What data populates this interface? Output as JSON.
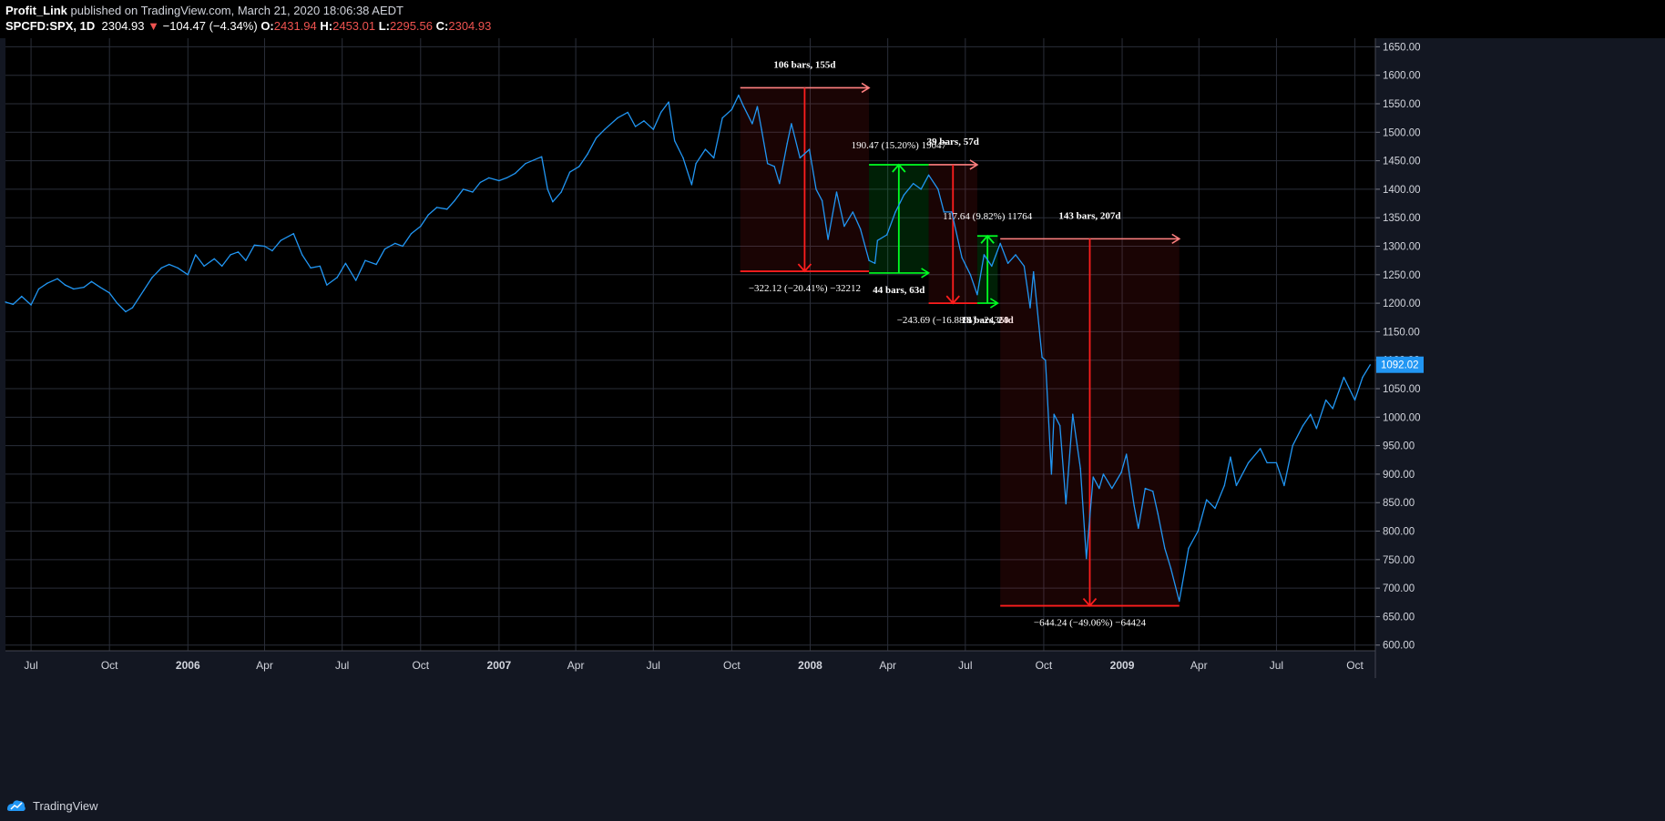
{
  "header": {
    "author": "Profit_Link",
    "published": "published on TradingView.com, March 21, 2020 18:06:38 AEDT",
    "symbol": "SPCFD:SPX, 1D",
    "last": "2304.93",
    "change": "−104.47 (−4.34%)",
    "o_label": "O:",
    "o_val": "2431.94",
    "h_label": "H:",
    "h_val": "2453.01",
    "l_label": "L:",
    "l_val": "2295.56",
    "c_label": "C:",
    "c_val": "2304.93",
    "down_arrow": "▼"
  },
  "footer": {
    "brand": "TradingView",
    "icon": "tradingview-logo-icon"
  },
  "colors": {
    "background": "#000000",
    "grid": "#2a2e39",
    "line": "#2196f3",
    "red": "#ff1e1e",
    "green": "#00ff22",
    "price_badge": "#2196f3"
  },
  "chart_data": {
    "type": "line",
    "title": "",
    "xlabel": "",
    "ylabel": "",
    "y_ticks": [
      600,
      650,
      700,
      750,
      800,
      850,
      900,
      950,
      1000,
      1050,
      1100,
      1150,
      1200,
      1250,
      1300,
      1350,
      1400,
      1450,
      1500,
      1550,
      1600,
      1650
    ],
    "ylim": [
      590,
      1665
    ],
    "x_ticks": [
      {
        "label": "Jul",
        "date": "2005-07-01",
        "bold": false
      },
      {
        "label": "Oct",
        "date": "2005-10-01",
        "bold": false
      },
      {
        "label": "2006",
        "date": "2006-01-01",
        "bold": true
      },
      {
        "label": "Apr",
        "date": "2006-04-01",
        "bold": false
      },
      {
        "label": "Jul",
        "date": "2006-07-01",
        "bold": false
      },
      {
        "label": "Oct",
        "date": "2006-10-01",
        "bold": false
      },
      {
        "label": "2007",
        "date": "2007-01-01",
        "bold": true
      },
      {
        "label": "Apr",
        "date": "2007-04-01",
        "bold": false
      },
      {
        "label": "Jul",
        "date": "2007-07-01",
        "bold": false
      },
      {
        "label": "Oct",
        "date": "2007-10-01",
        "bold": false
      },
      {
        "label": "2008",
        "date": "2008-01-01",
        "bold": true
      },
      {
        "label": "Apr",
        "date": "2008-04-01",
        "bold": false
      },
      {
        "label": "Jul",
        "date": "2008-07-01",
        "bold": false
      },
      {
        "label": "Oct",
        "date": "2008-10-01",
        "bold": false
      },
      {
        "label": "2009",
        "date": "2009-01-01",
        "bold": true
      },
      {
        "label": "Apr",
        "date": "2009-04-01",
        "bold": false
      },
      {
        "label": "Jul",
        "date": "2009-07-01",
        "bold": false
      },
      {
        "label": "Oct",
        "date": "2009-10-01",
        "bold": false
      }
    ],
    "xlim": [
      "2005-06-01",
      "2009-10-25"
    ],
    "series": [
      {
        "values": [
          [
            "2005-06-01",
            1202
          ],
          [
            "2005-06-10",
            1198
          ],
          [
            "2005-06-20",
            1212
          ],
          [
            "2005-07-01",
            1197
          ],
          [
            "2005-07-10",
            1225
          ],
          [
            "2005-07-20",
            1235
          ],
          [
            "2005-08-01",
            1243
          ],
          [
            "2005-08-10",
            1232
          ],
          [
            "2005-08-20",
            1225
          ],
          [
            "2005-09-01",
            1228
          ],
          [
            "2005-09-10",
            1238
          ],
          [
            "2005-09-20",
            1228
          ],
          [
            "2005-10-01",
            1218
          ],
          [
            "2005-10-10",
            1200
          ],
          [
            "2005-10-20",
            1185
          ],
          [
            "2005-10-28",
            1192
          ],
          [
            "2005-11-10",
            1222
          ],
          [
            "2005-11-20",
            1245
          ],
          [
            "2005-12-01",
            1262
          ],
          [
            "2005-12-10",
            1268
          ],
          [
            "2005-12-20",
            1262
          ],
          [
            "2006-01-01",
            1250
          ],
          [
            "2006-01-10",
            1285
          ],
          [
            "2006-01-20",
            1265
          ],
          [
            "2006-02-01",
            1278
          ],
          [
            "2006-02-10",
            1265
          ],
          [
            "2006-02-20",
            1285
          ],
          [
            "2006-03-01",
            1290
          ],
          [
            "2006-03-10",
            1275
          ],
          [
            "2006-03-20",
            1302
          ],
          [
            "2006-04-01",
            1300
          ],
          [
            "2006-04-10",
            1292
          ],
          [
            "2006-04-20",
            1310
          ],
          [
            "2006-05-05",
            1322
          ],
          [
            "2006-05-15",
            1285
          ],
          [
            "2006-05-25",
            1262
          ],
          [
            "2006-06-05",
            1265
          ],
          [
            "2006-06-13",
            1232
          ],
          [
            "2006-06-25",
            1245
          ],
          [
            "2006-07-05",
            1270
          ],
          [
            "2006-07-17",
            1240
          ],
          [
            "2006-07-28",
            1275
          ],
          [
            "2006-08-10",
            1268
          ],
          [
            "2006-08-20",
            1295
          ],
          [
            "2006-09-01",
            1305
          ],
          [
            "2006-09-10",
            1300
          ],
          [
            "2006-09-20",
            1322
          ],
          [
            "2006-10-01",
            1335
          ],
          [
            "2006-10-10",
            1355
          ],
          [
            "2006-10-20",
            1368
          ],
          [
            "2006-11-01",
            1365
          ],
          [
            "2006-11-10",
            1380
          ],
          [
            "2006-11-20",
            1400
          ],
          [
            "2006-12-01",
            1395
          ],
          [
            "2006-12-10",
            1412
          ],
          [
            "2006-12-20",
            1420
          ],
          [
            "2007-01-01",
            1415
          ],
          [
            "2007-01-10",
            1420
          ],
          [
            "2007-01-20",
            1428
          ],
          [
            "2007-02-01",
            1445
          ],
          [
            "2007-02-20",
            1457
          ],
          [
            "2007-02-27",
            1400
          ],
          [
            "2007-03-05",
            1378
          ],
          [
            "2007-03-15",
            1395
          ],
          [
            "2007-03-25",
            1430
          ],
          [
            "2007-04-05",
            1440
          ],
          [
            "2007-04-15",
            1462
          ],
          [
            "2007-04-25",
            1490
          ],
          [
            "2007-05-05",
            1505
          ],
          [
            "2007-05-20",
            1525
          ],
          [
            "2007-06-01",
            1535
          ],
          [
            "2007-06-10",
            1510
          ],
          [
            "2007-06-20",
            1520
          ],
          [
            "2007-07-01",
            1505
          ],
          [
            "2007-07-10",
            1535
          ],
          [
            "2007-07-19",
            1553
          ],
          [
            "2007-07-26",
            1485
          ],
          [
            "2007-08-05",
            1455
          ],
          [
            "2007-08-15",
            1408
          ],
          [
            "2007-08-20",
            1445
          ],
          [
            "2007-08-31",
            1470
          ],
          [
            "2007-09-10",
            1455
          ],
          [
            "2007-09-20",
            1525
          ],
          [
            "2007-10-01",
            1540
          ],
          [
            "2007-10-09",
            1565
          ],
          [
            "2007-10-15",
            1545
          ],
          [
            "2007-10-25",
            1515
          ],
          [
            "2007-10-31",
            1545
          ],
          [
            "2007-11-05",
            1505
          ],
          [
            "2007-11-12",
            1445
          ],
          [
            "2007-11-20",
            1440
          ],
          [
            "2007-11-26",
            1410
          ],
          [
            "2007-12-05",
            1480
          ],
          [
            "2007-12-10",
            1515
          ],
          [
            "2007-12-20",
            1455
          ],
          [
            "2007-12-31",
            1470
          ],
          [
            "2008-01-08",
            1400
          ],
          [
            "2008-01-15",
            1380
          ],
          [
            "2008-01-22",
            1312
          ],
          [
            "2008-02-01",
            1395
          ],
          [
            "2008-02-10",
            1335
          ],
          [
            "2008-02-20",
            1360
          ],
          [
            "2008-02-29",
            1330
          ],
          [
            "2008-03-10",
            1275
          ],
          [
            "2008-03-17",
            1270
          ],
          [
            "2008-03-20",
            1310
          ],
          [
            "2008-03-31",
            1320
          ],
          [
            "2008-04-10",
            1360
          ],
          [
            "2008-04-20",
            1390
          ],
          [
            "2008-05-01",
            1410
          ],
          [
            "2008-05-10",
            1400
          ],
          [
            "2008-05-19",
            1425
          ],
          [
            "2008-05-30",
            1400
          ],
          [
            "2008-06-06",
            1360
          ],
          [
            "2008-06-15",
            1360
          ],
          [
            "2008-06-27",
            1280
          ],
          [
            "2008-07-07",
            1250
          ],
          [
            "2008-07-15",
            1215
          ],
          [
            "2008-07-23",
            1285
          ],
          [
            "2008-08-01",
            1265
          ],
          [
            "2008-08-11",
            1305
          ],
          [
            "2008-08-20",
            1270
          ],
          [
            "2008-08-29",
            1285
          ],
          [
            "2008-09-08",
            1265
          ],
          [
            "2008-09-15",
            1192
          ],
          [
            "2008-09-19",
            1255
          ],
          [
            "2008-09-29",
            1105
          ],
          [
            "2008-10-03",
            1100
          ],
          [
            "2008-10-10",
            900
          ],
          [
            "2008-10-13",
            1005
          ],
          [
            "2008-10-20",
            985
          ],
          [
            "2008-10-27",
            848
          ],
          [
            "2008-11-04",
            1005
          ],
          [
            "2008-11-13",
            910
          ],
          [
            "2008-11-20",
            752
          ],
          [
            "2008-11-28",
            895
          ],
          [
            "2008-12-05",
            875
          ],
          [
            "2008-12-10",
            900
          ],
          [
            "2008-12-20",
            875
          ],
          [
            "2008-12-31",
            903
          ],
          [
            "2009-01-06",
            935
          ],
          [
            "2009-01-15",
            845
          ],
          [
            "2009-01-20",
            805
          ],
          [
            "2009-01-28",
            875
          ],
          [
            "2009-02-06",
            870
          ],
          [
            "2009-02-12",
            830
          ],
          [
            "2009-02-20",
            770
          ],
          [
            "2009-02-27",
            735
          ],
          [
            "2009-03-09",
            677
          ],
          [
            "2009-03-20",
            770
          ],
          [
            "2009-03-31",
            800
          ],
          [
            "2009-04-10",
            855
          ],
          [
            "2009-04-20",
            840
          ],
          [
            "2009-05-01",
            880
          ],
          [
            "2009-05-08",
            930
          ],
          [
            "2009-05-15",
            880
          ],
          [
            "2009-05-29",
            920
          ],
          [
            "2009-06-12",
            945
          ],
          [
            "2009-06-20",
            920
          ],
          [
            "2009-07-01",
            920
          ],
          [
            "2009-07-10",
            880
          ],
          [
            "2009-07-20",
            950
          ],
          [
            "2009-08-01",
            985
          ],
          [
            "2009-08-10",
            1005
          ],
          [
            "2009-08-17",
            980
          ],
          [
            "2009-08-28",
            1030
          ],
          [
            "2009-09-05",
            1015
          ],
          [
            "2009-09-18",
            1070
          ],
          [
            "2009-10-01",
            1030
          ],
          [
            "2009-10-10",
            1070
          ],
          [
            "2009-10-19",
            1092
          ]
        ]
      }
    ],
    "last_value_badge": "1092.02",
    "annotations": [
      {
        "kind": "drawdown",
        "from_date": "2007-10-11",
        "to_date": "2008-03-10",
        "top": 1578,
        "bottom": 1256,
        "label_top": "106 bars, 155d",
        "label_bottom": "−322.12 (−20.41%) −32212"
      },
      {
        "kind": "rally",
        "from_date": "2008-03-10",
        "to_date": "2008-05-19",
        "top": 1443,
        "bottom": 1253,
        "label_top": "190.47 (15.20%) 19047",
        "label_bottom": "44 bars, 63d"
      },
      {
        "kind": "drawdown",
        "from_date": "2008-05-19",
        "to_date": "2008-07-15",
        "top": 1443,
        "bottom": 1200,
        "label_top": "39 bars, 57d",
        "label_bottom": "−243.69 (−16.88%) −24369"
      },
      {
        "kind": "rally",
        "from_date": "2008-07-15",
        "to_date": "2008-08-08",
        "top": 1318,
        "bottom": 1200,
        "label_top": "117.64 (9.82%) 11764",
        "label_bottom": "18 bars, 24d"
      },
      {
        "kind": "drawdown",
        "from_date": "2008-08-11",
        "to_date": "2009-03-09",
        "top": 1313,
        "bottom": 669,
        "label_top": "143 bars, 207d",
        "label_bottom": "−644.24 (−49.06%) −64424"
      }
    ]
  }
}
